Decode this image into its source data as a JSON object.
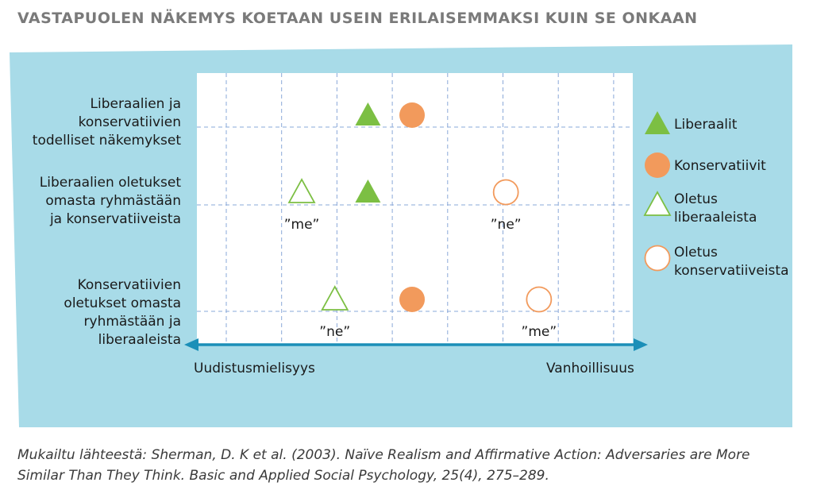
{
  "title": "VASTAPUOLEN NÄKEMYS KOETAAN USEIN ERILAISEMMAKSI KUIN SE ONKAAN",
  "colors": {
    "panel_bg": "#a8dbe8",
    "axis": "#1b8fb8",
    "grid": "#8aa8d8",
    "liberal_green": "#7cbf43",
    "conservative_orange": "#f29a5c",
    "text": "#1a1a1a"
  },
  "chart_data": {
    "type": "scatter",
    "title": "",
    "xlabel_left": "Uudistusmielisyys",
    "xlabel_right": "Vanhoillisuus",
    "rows": [
      {
        "label_lines": [
          "Liberaalien ja",
          "konservatiivien",
          "todelliset näkemykset"
        ]
      },
      {
        "label_lines": [
          "Liberaalien oletukset",
          "omasta ryhmästään",
          "ja konservatiiveista"
        ]
      },
      {
        "label_lines": [
          "Konservatiivien",
          "oletukset omasta",
          "ryhmästään ja",
          "liberaaleista"
        ]
      }
    ],
    "points": [
      {
        "row": 0,
        "x": 3.1,
        "marker": "triangle-filled",
        "series": "Liberaalit",
        "tag": ""
      },
      {
        "row": 0,
        "x": 3.9,
        "marker": "circle-filled",
        "series": "Konservatiivit",
        "tag": ""
      },
      {
        "row": 1,
        "x": 1.9,
        "marker": "triangle-open",
        "series": "Oletus liberaaleista",
        "tag": "”me”"
      },
      {
        "row": 1,
        "x": 3.1,
        "marker": "triangle-filled",
        "series": "Liberaalit",
        "tag": ""
      },
      {
        "row": 1,
        "x": 5.6,
        "marker": "circle-open",
        "series": "Oletus konservatiiveista",
        "tag": "”ne”"
      },
      {
        "row": 2,
        "x": 2.5,
        "marker": "triangle-open",
        "series": "Oletus liberaaleista",
        "tag": "”ne”"
      },
      {
        "row": 2,
        "x": 3.9,
        "marker": "circle-filled",
        "series": "Konservatiivit",
        "tag": ""
      },
      {
        "row": 2,
        "x": 6.2,
        "marker": "circle-open",
        "series": "Oletus konservatiiveista",
        "tag": "”me”"
      }
    ],
    "legend": [
      {
        "marker": "triangle-filled",
        "lines": [
          "Liberaalit"
        ]
      },
      {
        "marker": "circle-filled",
        "lines": [
          "Konservatiivit"
        ]
      },
      {
        "marker": "triangle-open",
        "lines": [
          "Oletus",
          "liberaaleista"
        ]
      },
      {
        "marker": "circle-open",
        "lines": [
          "Oletus",
          "konservatiiveista"
        ]
      }
    ],
    "legend_position": "right",
    "grid": true
  },
  "source": {
    "line1": "Mukailtu lähteestä: Sherman, D. K et al. (2003). Naïve Realism and Affirmative Action: Adversaries are More",
    "line2": "Similar Than They Think. Basic and Applied Social Psychology, 25(4), 275–289."
  }
}
